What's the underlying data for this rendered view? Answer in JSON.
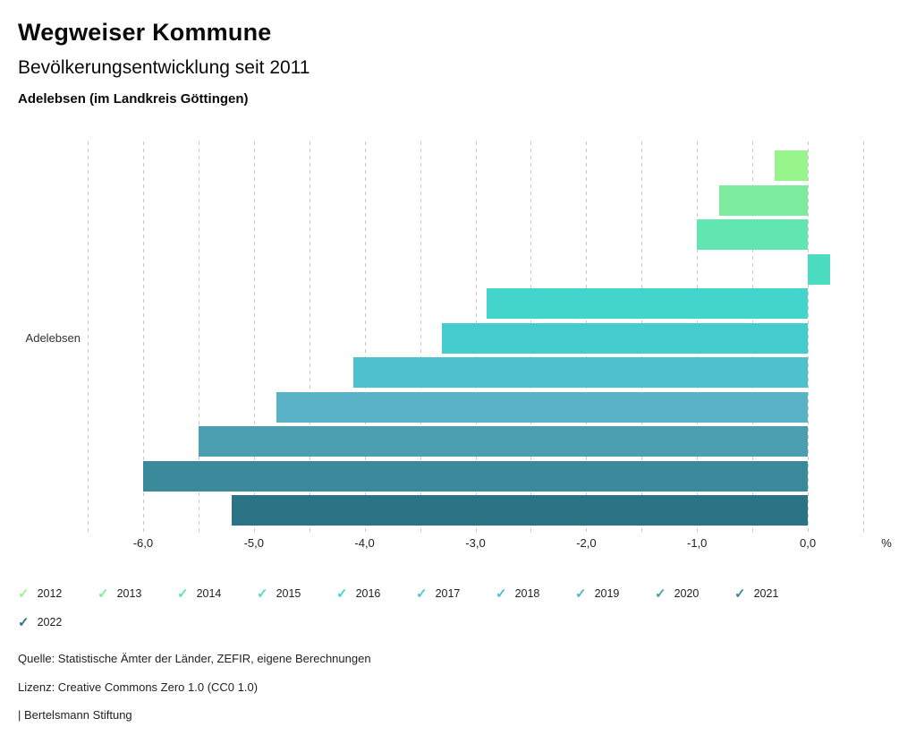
{
  "header": {
    "title": "Wegweiser Kommune",
    "subtitle": "Bevölkerungsentwicklung seit 2011",
    "region": "Adelebsen (im Landkreis Göttingen)"
  },
  "chart_data": {
    "type": "bar",
    "orientation": "horizontal",
    "group_label": "Adelebsen",
    "categories": [
      "2012",
      "2013",
      "2014",
      "2015",
      "2016",
      "2017",
      "2018",
      "2019",
      "2020",
      "2021",
      "2022"
    ],
    "values": [
      -0.3,
      -0.8,
      -1.0,
      0.2,
      -2.9,
      -3.3,
      -4.1,
      -4.8,
      -5.5,
      -6.0,
      -5.2
    ],
    "colors": [
      "#98f58b",
      "#7dec9e",
      "#61e5b1",
      "#4bdcc2",
      "#43d5cb",
      "#45cccf",
      "#4dc1cd",
      "#5ab2c6",
      "#4c9fb1",
      "#3b8a9c",
      "#2b7485"
    ],
    "xlim": [
      -6.5,
      0.5
    ],
    "grid_step": 0.5,
    "grid_color": "#c8c8c8",
    "x_tick_values": [
      -6,
      -5,
      -4,
      -3,
      -2,
      -1,
      0
    ],
    "x_tick_labels": [
      "-6,0",
      "-5,0",
      "-4,0",
      "-3,0",
      "-2,0",
      "-1,0",
      "0,0"
    ],
    "unit_label": "%",
    "grid": true,
    "legend_position": "bottom"
  },
  "legend": {
    "check_icon": "✓"
  },
  "footer": {
    "source": "Quelle: Statistische Ämter der Länder, ZEFIR, eigene Berechnungen",
    "license": "Lizenz: Creative Commons Zero 1.0 (CC0 1.0)",
    "attribution": "| Bertelsmann Stiftung"
  }
}
